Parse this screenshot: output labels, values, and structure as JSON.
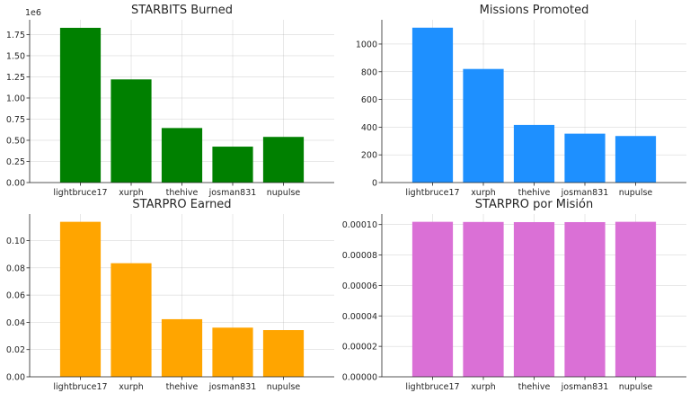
{
  "chart_data": [
    {
      "type": "bar",
      "title": "STARBITS Burned",
      "color": "#008000",
      "categories": [
        "lightbruce17",
        "xurph",
        "thehive",
        "josman831",
        "nupulse"
      ],
      "values": [
        1830000,
        1220000,
        645000,
        425000,
        540000
      ],
      "ylim": [
        0,
        1925000
      ],
      "yticks": [
        0,
        0.25,
        0.5,
        0.75,
        1.0,
        1.25,
        1.5,
        1.75
      ],
      "ytick_labels": [
        "0.00",
        "0.25",
        "0.50",
        "0.75",
        "1.00",
        "1.25",
        "1.50",
        "1.75"
      ],
      "yscale_unit": 1000000,
      "offset_label": "1e6",
      "grid": true
    },
    {
      "type": "bar",
      "title": "Missions Promoted",
      "color": "#1e90ff",
      "categories": [
        "lightbruce17",
        "xurph",
        "thehive",
        "josman831",
        "nupulse"
      ],
      "values": [
        1118,
        820,
        416,
        353,
        336
      ],
      "ylim": [
        0,
        1175
      ],
      "yticks": [
        0,
        200,
        400,
        600,
        800,
        1000
      ],
      "ytick_labels": [
        "0",
        "200",
        "400",
        "600",
        "800",
        "1000"
      ],
      "yscale_unit": 1,
      "grid": true
    },
    {
      "type": "bar",
      "title": "STARPRO Earned",
      "color": "#ffa500",
      "categories": [
        "lightbruce17",
        "xurph",
        "thehive",
        "josman831",
        "nupulse"
      ],
      "values": [
        0.1138,
        0.0834,
        0.0423,
        0.0361,
        0.0343
      ],
      "ylim": [
        0,
        0.1195
      ],
      "yticks": [
        0,
        0.02,
        0.04,
        0.06,
        0.08,
        0.1
      ],
      "ytick_labels": [
        "0.00",
        "0.02",
        "0.04",
        "0.06",
        "0.08",
        "0.10"
      ],
      "yscale_unit": 1,
      "grid": true
    },
    {
      "type": "bar",
      "title": "STARPRO por Misión",
      "color": "#da70d6",
      "categories": [
        "lightbruce17",
        "xurph",
        "thehive",
        "josman831",
        "nupulse"
      ],
      "values": [
        0.0001018,
        0.0001017,
        0.0001016,
        0.0001016,
        0.0001018
      ],
      "ylim": [
        0,
        0.0001069
      ],
      "yticks": [
        0,
        2e-05,
        4e-05,
        6e-05,
        8e-05,
        0.0001
      ],
      "ytick_labels": [
        "0.00000",
        "0.00002",
        "0.00004",
        "0.00006",
        "0.00008",
        "0.00010"
      ],
      "yscale_unit": 1,
      "grid": true
    }
  ]
}
